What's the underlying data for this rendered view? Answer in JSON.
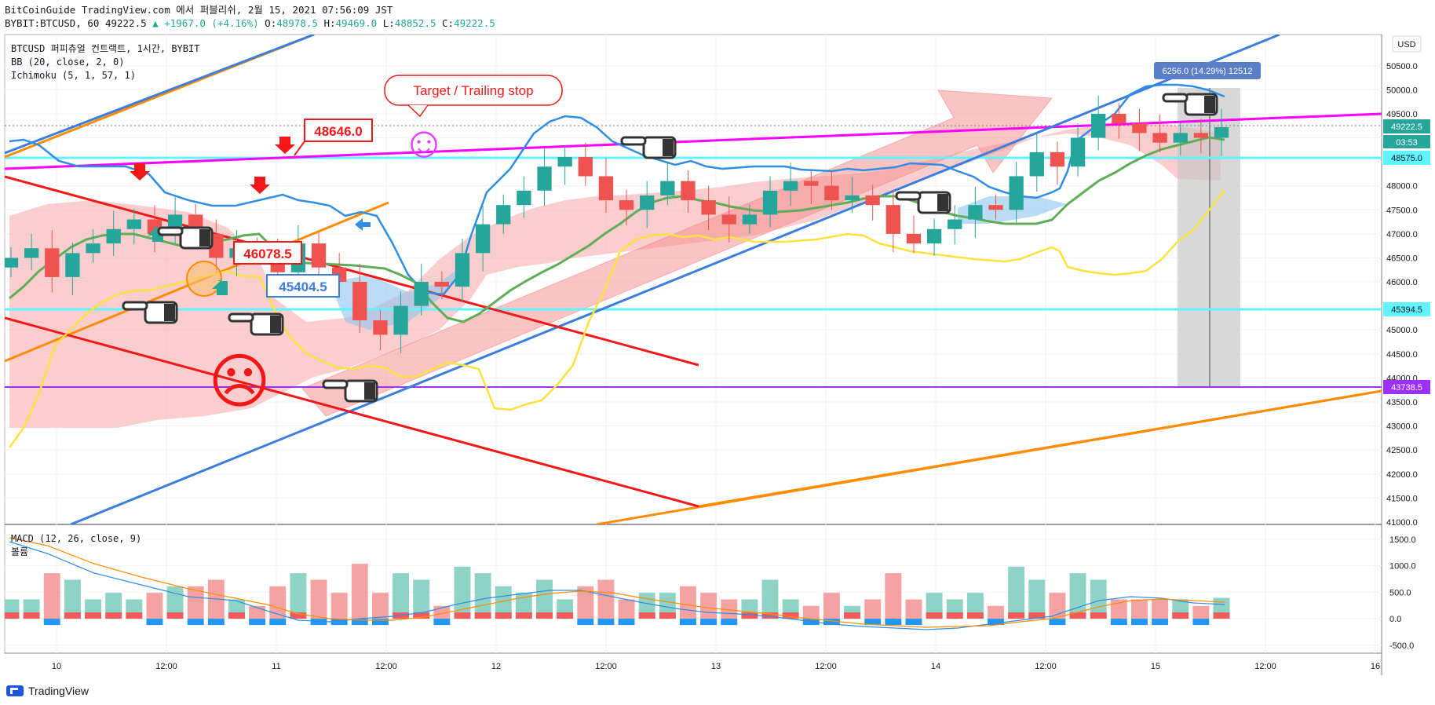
{
  "header": {
    "line1": "BitCoinGuide TradingView.com 에서 퍼블리쉬, 2월 15, 2021 07:56:09 JST",
    "symbol": "BYBIT:BTCUSD, 60",
    "last": "49222.5",
    "change": "▲ +1967.0 (+4.16%)",
    "o_label": "O:",
    "o": "48978.5",
    "h_label": "H:",
    "h": "49469.0",
    "l_label": "L:",
    "l": "48852.5",
    "c_label": "C:",
    "c": "49222.5"
  },
  "legend": {
    "symbol_line": "BTCUSD 퍼피츄얼 컨트랙트, 1시간, BYBIT",
    "bb": "BB (20, close, 2, 0)",
    "ichimoku": "Ichimoku (5, 1, 57, 1)",
    "macd": "MACD (12, 26, close, 9)",
    "macd_sub": "볼륨"
  },
  "currency_button": "USD",
  "annotations": {
    "target": "Target / Trailing stop",
    "price_box_1": "48646.0",
    "price_box_2": "46078.5",
    "price_box_3": "45404.5",
    "range_box": "6256.0 (14.29%) 12512",
    "smiley": "☺",
    "sad": "☹"
  },
  "price_tags": {
    "last": "49222.5",
    "countdown": "03:53",
    "level_1": "48575.0",
    "level_2": "45394.5",
    "level_3": "43738.5"
  },
  "footer": {
    "brand": "TradingView"
  },
  "colors": {
    "up": "#26a69a",
    "down": "#ef5350",
    "bb": "#2f8de4",
    "bb_basis": "#5fae57",
    "conv": "#fbe23c",
    "magenta": "#ff00ff",
    "cyan": "#5ff4ff",
    "red_line": "#f21818",
    "orange_line": "#ff8c00",
    "blue_line": "#3d7ddd",
    "purple": "#9b30ff"
  },
  "chart_data": [
    {
      "type": "line",
      "title": "BTCUSD 퍼피츄얼 컨트랙트, 1시간, BYBIT",
      "x_ticks": [
        "10",
        "12:00",
        "11",
        "12:00",
        "12",
        "12:00",
        "13",
        "12:00",
        "14",
        "12:00",
        "15",
        "12:00",
        "16"
      ],
      "y_ticks": [
        41000,
        41500,
        42000,
        42500,
        43000,
        43500,
        44000,
        44500,
        45000,
        45500,
        46000,
        46500,
        47000,
        47500,
        48000,
        48500,
        49000,
        49500,
        50000,
        50500
      ],
      "ylim": [
        40950,
        51150
      ],
      "y_scale": "linear",
      "grid": true,
      "series": [
        {
          "name": "close",
          "values": [
            46500,
            46700,
            46100,
            46600,
            46800,
            47100,
            47300,
            47000,
            47400,
            47000,
            46500,
            46700,
            46600,
            46200,
            46800,
            46300,
            46000,
            45200,
            44900,
            45500,
            46000,
            45900,
            46600,
            47200,
            47600,
            47900,
            48400,
            48600,
            48200,
            47700,
            47500,
            47800,
            48100,
            47700,
            47400,
            47200,
            47400,
            47900,
            48100,
            48000,
            47700,
            47800,
            47600,
            47000,
            46800,
            47100,
            47300,
            47600,
            47500,
            48200,
            48700,
            48400,
            49000,
            49500,
            49300,
            49100,
            48900,
            49100,
            49000,
            49222.5
          ]
        }
      ]
    },
    {
      "type": "bar",
      "title": "MACD (12, 26, close, 9)",
      "y_ticks": [
        -500,
        0,
        500,
        1000,
        1500
      ],
      "ylim": [
        -650,
        1750
      ]
    }
  ]
}
